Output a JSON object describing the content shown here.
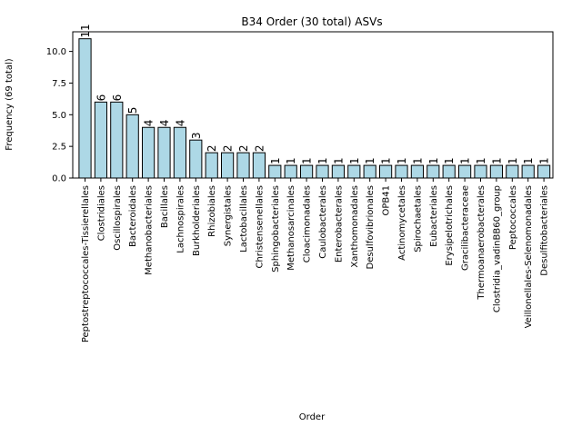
{
  "chart_data": {
    "type": "bar",
    "title": "B34 Order (30 total) ASVs",
    "xlabel": "Order",
    "ylabel": "Frequency (69 total)",
    "ylim": [
      0,
      11.55
    ],
    "yticks": [
      "0.0",
      "2.5",
      "5.0",
      "7.5",
      "10.0"
    ],
    "grid": false,
    "legend": "none",
    "bar_color": "#add8e6",
    "edge_color": "#000000",
    "categories": [
      "Peptostreptococcales-Tissierellales",
      "Clostridiales",
      "Oscillospirales",
      "Bacteroidales",
      "Methanobacteriales",
      "Bacillales",
      "Lachnospirales",
      "Burkholderiales",
      "Rhizobiales",
      "Synergistales",
      "Lactobacillales",
      "Christensenellales",
      "Sphingobacteriales",
      "Methanosarcinales",
      "Cloacimonadales",
      "Caulobacterales",
      "Enterobacterales",
      "Xanthomonadales",
      "Desulfovibrionales",
      "OPB41",
      "Actinomycetales",
      "Spirochaetales",
      "Eubacteriales",
      "Erysipelotrichales",
      "Gracilibacteraceae",
      "Thermoanaerobacterales",
      "Clostridia_vadinBB60_group",
      "Peptococcales",
      "Veillonellales-Selenomonadales",
      "Desulfitobacteriales"
    ],
    "values": [
      11,
      6,
      6,
      5,
      4,
      4,
      4,
      3,
      2,
      2,
      2,
      2,
      1,
      1,
      1,
      1,
      1,
      1,
      1,
      1,
      1,
      1,
      1,
      1,
      1,
      1,
      1,
      1,
      1,
      1
    ],
    "data_labels": [
      "11",
      "6",
      "6",
      "5",
      "4",
      "4",
      "4",
      "3",
      "2",
      "2",
      "2",
      "2",
      "1",
      "1",
      "1",
      "1",
      "1",
      "1",
      "1",
      "1",
      "1",
      "1",
      "1",
      "1",
      "1",
      "1",
      "1",
      "1",
      "1",
      "1"
    ]
  }
}
